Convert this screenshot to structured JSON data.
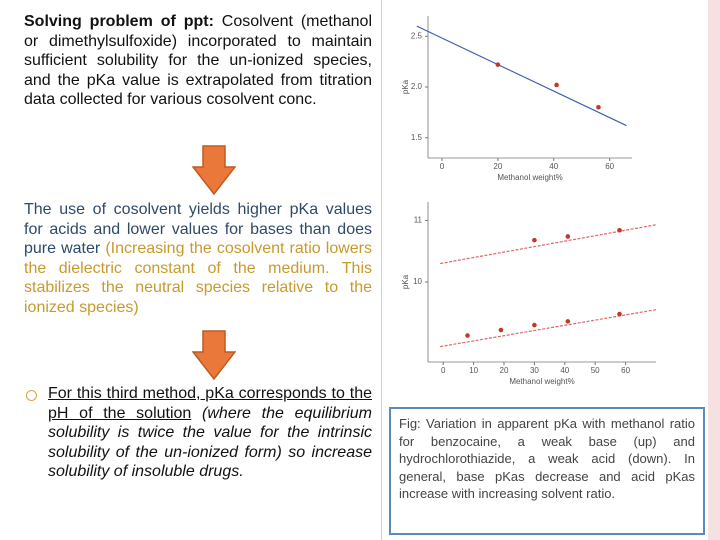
{
  "blocks": [
    {
      "lead": "Solving problem of ppt:",
      "text": " Cosolvent (methanol or dimethylsulfoxide) incorporated to maintain sufficient solubility for the un-ionized species, and the pKa value is extrapolated from titration data collected for various cosolvent conc."
    },
    {
      "text": "The use of cosolvent yields higher pKa values for acids and lower values for bases than does pure water ",
      "note": "(Increasing the cosolvent ratio lowers the dielectric constant of the medium. This stabilizes the neutral species relative to the ionized species)"
    },
    {
      "underlined": "For this third method, pKa corresponds to the pH of the solution",
      "italic": " (where the equilibrium solubility is twice the value for the intrinsic solubility of the un-ionized form) so",
      "text": " increase solubility of insoluble drugs."
    }
  ],
  "charts": [
    {
      "type": "line",
      "y_label": "pKa",
      "x_label": "Methanol weight%",
      "xlim": [
        -5,
        68
      ],
      "ylim": [
        1.3,
        2.7
      ],
      "xticks": [
        0,
        20,
        40,
        60
      ],
      "yticks": [
        1.5,
        {
          "value": 2,
          "label": "2.0"
        },
        2.5
      ],
      "series": [
        {
          "line_x": [
            -9,
            66
          ],
          "line_y": [
            2.6,
            1.62
          ],
          "line_color": "#3b5fb0",
          "x": [
            20,
            41,
            56
          ],
          "values": [
            2.22,
            2.02,
            1.8
          ],
          "color": "#c0392b"
        }
      ]
    },
    {
      "type": "line",
      "y_label": "pKa",
      "x_label": "Methanol weight%",
      "xlim": [
        -5,
        70
      ],
      "ylim": [
        8.7,
        11.3
      ],
      "xticks": [
        0,
        10,
        20,
        30,
        40,
        50,
        60
      ],
      "yticks": [
        10,
        11
      ],
      "series": [
        {
          "line_x": [
            -1,
            70
          ],
          "line_y": [
            10.3,
            10.93
          ],
          "line_color": "#e06666",
          "x": [
            30,
            41,
            58
          ],
          "values": [
            10.68,
            10.74,
            10.84
          ],
          "color": "#c0392b"
        },
        {
          "line_x": [
            -1,
            70
          ],
          "line_y": [
            8.95,
            9.55
          ],
          "line_color": "#e06666",
          "x": [
            8,
            19,
            30,
            41,
            58
          ],
          "values": [
            9.13,
            9.22,
            9.3,
            9.36,
            9.48
          ],
          "color": "#c0392b"
        }
      ]
    }
  ],
  "caption": "Fig: Variation in apparent pKa with methanol ratio for benzocaine, a weak base (up) and hydrochlorothiazide, a weak acid (down). In general, base pKas decrease and acid pKas increase with increasing solvent ratio."
}
